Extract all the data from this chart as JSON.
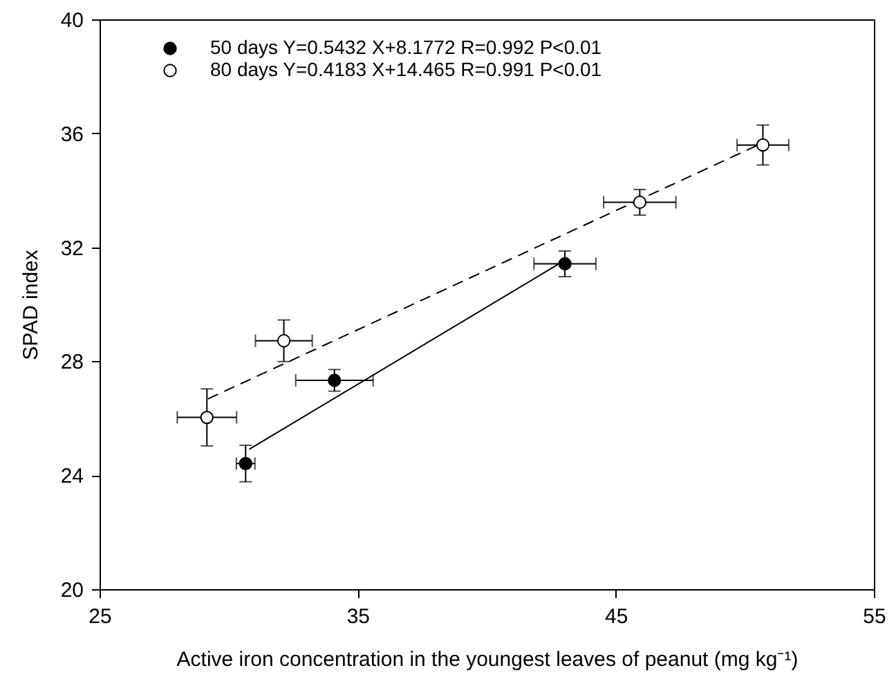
{
  "chart_data": {
    "type": "scatter",
    "xlabel": "Active iron concentration in the youngest leaves of peanut (mg kg⁻¹)",
    "ylabel": "SPAD index",
    "xlim": [
      25,
      55
    ],
    "xticks": [
      25,
      35,
      45,
      55
    ],
    "ylim": [
      20,
      40
    ],
    "yticks": [
      20,
      24,
      28,
      32,
      36,
      40
    ],
    "grid": false,
    "legend": "top left",
    "marker": "circle",
    "series": [
      {
        "name": "50 days  Y=0.5432 X+8.1772  R=0.992  P<0.01",
        "color": "#000000",
        "x": [
          30.66,
          34.1,
          43.03
        ],
        "values": [
          24.41,
          27.33,
          31.42
        ],
        "xerrors": [
          0.36,
          1.5,
          1.2
        ],
        "errors": [
          0.64,
          0.38,
          0.45
        ]
      },
      {
        "name": "80 days  Y=0.4183 X+14.465  R=0.991  P<0.01",
        "color": "#ffffff",
        "x": [
          29.16,
          32.14,
          45.93,
          50.7
        ],
        "values": [
          26.03,
          28.72,
          33.58,
          35.59
        ],
        "xerrors": [
          1.15,
          1.1,
          1.4,
          1.0
        ],
        "errors": [
          1.0,
          0.73,
          0.45,
          0.7
        ]
      },
      {
        "type": "line",
        "color": "#000000",
        "line_style": "solid",
        "marker": "none",
        "x": [
          30.8,
          43.0
        ],
        "values": [
          24.91,
          31.53
        ]
      },
      {
        "type": "line",
        "color": "#000000",
        "line_style": "dashed",
        "marker": "none",
        "x": [
          29.2,
          50.7
        ],
        "values": [
          26.68,
          35.67
        ]
      }
    ]
  }
}
